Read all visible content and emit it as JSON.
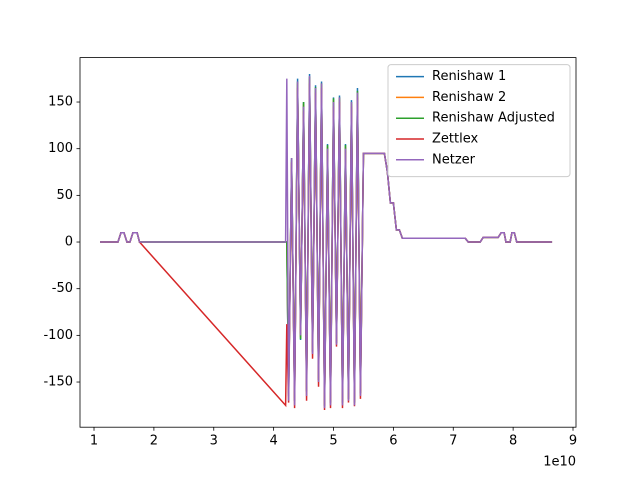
{
  "chart_data": {
    "type": "line",
    "x_offset_label": "1e10",
    "x": [
      1.1,
      1.4,
      1.45,
      1.5,
      1.55,
      1.6,
      1.65,
      1.72,
      1.76,
      4.2,
      4.22,
      4.25,
      4.3,
      4.35,
      4.4,
      4.45,
      4.5,
      4.55,
      4.6,
      4.65,
      4.7,
      4.75,
      4.8,
      4.85,
      4.9,
      4.95,
      5.0,
      5.05,
      5.1,
      5.15,
      5.2,
      5.25,
      5.3,
      5.35,
      5.4,
      5.45,
      5.5,
      5.85,
      5.9,
      5.95,
      6.0,
      6.05,
      6.1,
      6.15,
      7.2,
      7.25,
      7.45,
      7.5,
      7.75,
      7.8,
      7.85,
      7.88,
      7.95,
      7.98,
      8.02,
      8.06,
      8.65
    ],
    "series": [
      {
        "name": "Renishaw 1",
        "color": "#1f77b4",
        "values": [
          0,
          0,
          10,
          10,
          0,
          0,
          10,
          10,
          0,
          0,
          0,
          -165,
          88,
          -170,
          175,
          -105,
          150,
          -160,
          180,
          -118,
          168,
          -148,
          172,
          -176,
          105,
          -172,
          155,
          -108,
          157,
          -172,
          105,
          -168,
          152,
          -172,
          165,
          -162,
          95,
          95,
          75,
          42,
          42,
          13,
          13,
          4,
          4,
          0,
          0,
          5,
          5,
          10,
          10,
          0,
          0,
          10,
          10,
          0,
          0
        ]
      },
      {
        "name": "Renishaw 2",
        "color": "#ff7f0e",
        "values": [
          0,
          0,
          10,
          10,
          0,
          0,
          10,
          10,
          0,
          0,
          0,
          -160,
          86,
          -168,
          170,
          -102,
          148,
          -158,
          175,
          -115,
          163,
          -146,
          168,
          -174,
          102,
          -170,
          152,
          -106,
          153,
          -170,
          102,
          -166,
          148,
          -170,
          160,
          -160,
          95,
          95,
          75,
          42,
          42,
          13,
          13,
          4,
          4,
          0,
          0,
          5,
          5,
          10,
          10,
          0,
          0,
          10,
          10,
          0,
          0
        ]
      },
      {
        "name": "Renishaw Adjusted",
        "color": "#2ca02c",
        "values": [
          0,
          0,
          10,
          10,
          0,
          0,
          10,
          10,
          0,
          0,
          0,
          -162,
          90,
          -170,
          172,
          -104,
          150,
          -160,
          177,
          -117,
          166,
          -148,
          170,
          -175,
          104,
          -172,
          154,
          -108,
          155,
          -172,
          104,
          -168,
          150,
          -172,
          162,
          -162,
          95,
          95,
          75,
          42,
          42,
          13,
          13,
          4,
          4,
          0,
          0,
          5,
          5,
          10,
          10,
          0,
          0,
          10,
          10,
          0,
          0
        ]
      },
      {
        "name": "Zettlex",
        "color": "#d62728",
        "values": [
          0,
          0,
          10,
          10,
          0,
          0,
          10,
          10,
          0,
          -175,
          -88,
          -172,
          85,
          -178,
          165,
          -98,
          140,
          -170,
          170,
          -125,
          160,
          -155,
          165,
          -180,
          98,
          -178,
          145,
          -112,
          150,
          -178,
          98,
          -172,
          145,
          -176,
          155,
          -168,
          95,
          95,
          75,
          42,
          42,
          13,
          13,
          4,
          4,
          0,
          0,
          5,
          5,
          10,
          10,
          0,
          0,
          10,
          10,
          0,
          0
        ]
      },
      {
        "name": "Netzer",
        "color": "#9467bd",
        "values": [
          0,
          0,
          10,
          10,
          0,
          0,
          10,
          10,
          0,
          0,
          175,
          -170,
          90,
          -175,
          172,
          -100,
          145,
          -165,
          178,
          -120,
          165,
          -150,
          170,
          -178,
          100,
          -175,
          150,
          -110,
          155,
          -175,
          100,
          -170,
          150,
          -175,
          160,
          -165,
          95,
          95,
          75,
          42,
          42,
          13,
          13,
          4,
          4,
          0,
          0,
          5,
          5,
          10,
          10,
          0,
          0,
          10,
          10,
          0,
          0
        ]
      }
    ],
    "xlim": [
      0.766,
      9.05
    ],
    "xticks": [
      1,
      2,
      3,
      4,
      5,
      6,
      7,
      8,
      9
    ],
    "ylim": [
      -198.4,
      197.6
    ],
    "yticks": [
      -150,
      -100,
      -50,
      0,
      50,
      100,
      150
    ],
    "legend": "upper right"
  }
}
